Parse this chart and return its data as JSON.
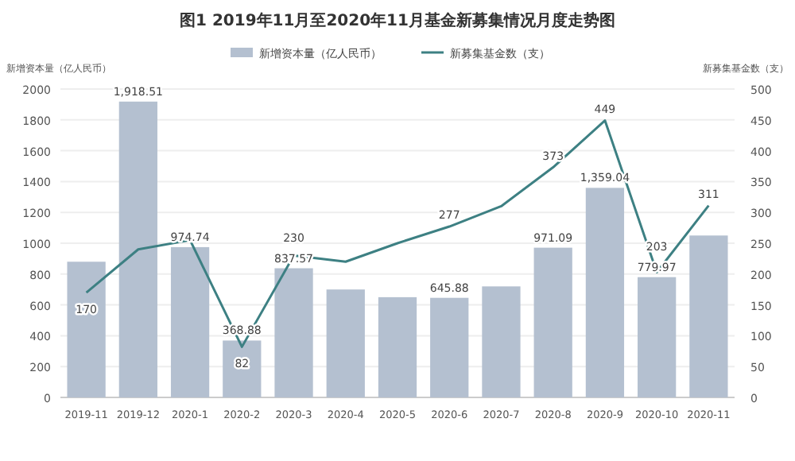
{
  "chart_data": {
    "type": "bar",
    "title": "图1  2019年11月至2020年11月基金新募集情况月度走势图",
    "ylabel": "新增资本量（亿人民币）",
    "y2label": "新募集基金数（支）",
    "categories": [
      "2019-11",
      "2019-12",
      "2020-1",
      "2020-2",
      "2020-3",
      "2020-4",
      "2020-5",
      "2020-6",
      "2020-7",
      "2020-8",
      "2020-9",
      "2020-10",
      "2020-11"
    ],
    "series": [
      {
        "name": "新增资本量（亿人民币）",
        "color": "#b4c0d0",
        "values": [
          880,
          1918.51,
          974.74,
          368.88,
          837.57,
          700,
          650,
          645.88,
          720,
          971.09,
          1359.04,
          779.97,
          1050
        ],
        "value_labels": [
          null,
          "1,918.51",
          "974.74",
          "368.88",
          "837.57",
          null,
          null,
          "645.88",
          null,
          "971.09",
          "1,359.04",
          "779.97",
          null
        ]
      },
      {
        "name": "新募集基金数（支）",
        "type": "line",
        "axis": "y2",
        "color": "#3d8083",
        "values": [
          170,
          240,
          255,
          82,
          230,
          220,
          250,
          277,
          310,
          373,
          449,
          203,
          311
        ],
        "value_labels": [
          "170",
          null,
          null,
          "82",
          "230",
          null,
          null,
          "277",
          null,
          "373",
          "449",
          "203",
          "311"
        ]
      }
    ],
    "ylim": [
      0,
      2000
    ],
    "yticks": [
      0,
      200,
      400,
      600,
      800,
      1000,
      1200,
      1400,
      1600,
      1800,
      2000
    ],
    "y2lim": [
      0,
      500
    ],
    "y2ticks": [
      0,
      50,
      100,
      150,
      200,
      250,
      300,
      350,
      400,
      450,
      500
    ],
    "grid": "y",
    "legend": "top"
  }
}
